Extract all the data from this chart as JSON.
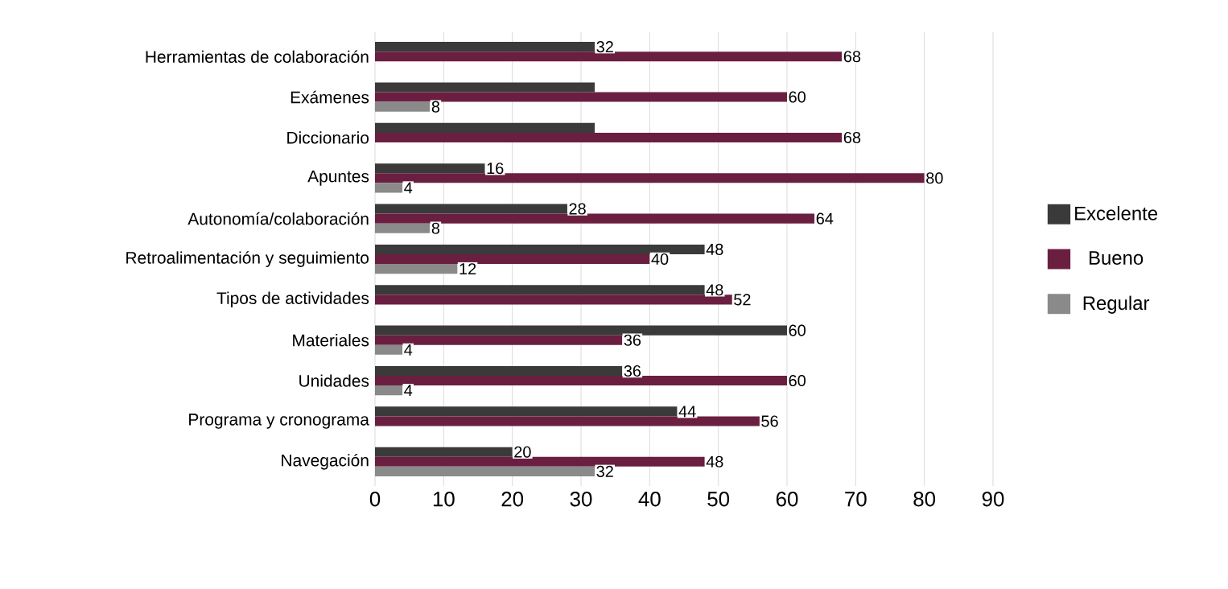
{
  "chart_data": {
    "type": "bar",
    "orientation": "horizontal",
    "categories": [
      "Herramientas de colaboración",
      "Exámenes",
      "Diccionario",
      "Apuntes",
      "Autonomía/colaboración",
      "Retroalimentación y seguimiento",
      "Tipos de actividades",
      "Materiales",
      "Unidades",
      "Programa y cronograma",
      "Navegación"
    ],
    "series": [
      {
        "name": "Excelente",
        "color": "#3a3a3a",
        "values": [
          32,
          32,
          32,
          16,
          28,
          48,
          48,
          60,
          36,
          44,
          20
        ],
        "value_labels": [
          "32",
          null,
          null,
          "16",
          "28",
          "48",
          "48",
          "60",
          "36",
          "44",
          "20"
        ]
      },
      {
        "name": "Bueno",
        "color": "#6b1f40",
        "values": [
          68,
          60,
          68,
          80,
          64,
          40,
          52,
          36,
          60,
          56,
          48
        ],
        "value_labels": [
          "68",
          "60",
          "68",
          "80",
          "64",
          "40",
          "52",
          "36",
          "60",
          "56",
          "48"
        ]
      },
      {
        "name": "Regular",
        "color": "#8a8a8a",
        "values": [
          null,
          8,
          null,
          4,
          8,
          12,
          null,
          4,
          4,
          null,
          32
        ],
        "value_labels": [
          null,
          "8",
          null,
          "4",
          "8",
          "12",
          null,
          "4",
          "4",
          null,
          "32"
        ]
      }
    ],
    "xlim": [
      0,
      90
    ],
    "xticks": [
      0,
      10,
      20,
      30,
      40,
      50,
      60,
      70,
      80,
      90
    ],
    "grid": "x",
    "legend": "right"
  }
}
